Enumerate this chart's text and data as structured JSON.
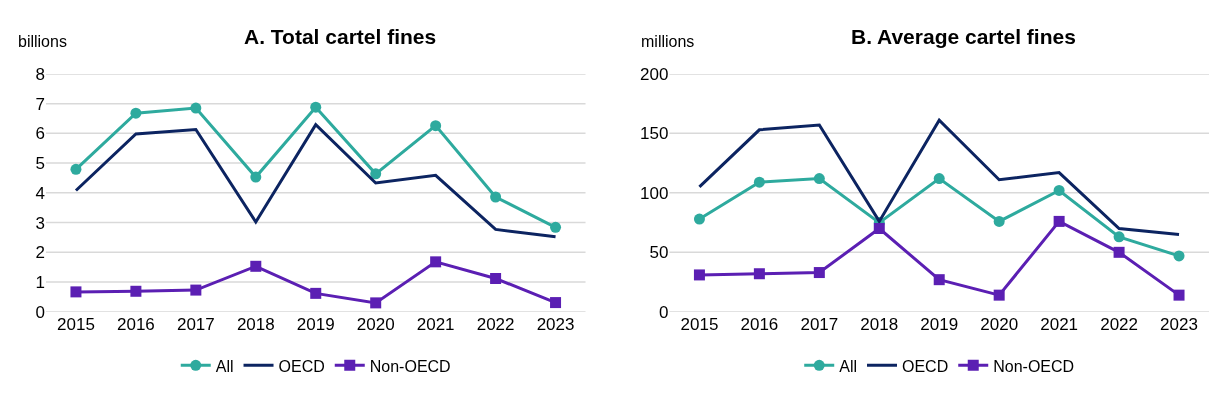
{
  "chart_data": [
    {
      "type": "line",
      "title": "A. Total cartel fines",
      "ylabel": "billions",
      "categories": [
        "2015",
        "2016",
        "2017",
        "2018",
        "2019",
        "2020",
        "2021",
        "2022",
        "2023"
      ],
      "ylim": [
        0,
        8
      ],
      "yticks": [
        0,
        1,
        2,
        3,
        4,
        5,
        6,
        7,
        8
      ],
      "grid": "y",
      "legend": "bottom",
      "series": [
        {
          "name": "All",
          "color": "#2eaa9e",
          "marker": "circle",
          "values": [
            4.79,
            6.68,
            6.85,
            4.53,
            6.88,
            4.64,
            6.26,
            3.86,
            2.84
          ]
        },
        {
          "name": "OECD",
          "color": "#0c2461",
          "marker": "none",
          "values": [
            4.08,
            5.98,
            6.13,
            3.02,
            6.29,
            4.33,
            4.59,
            2.77,
            2.52
          ]
        },
        {
          "name": "Non-OECD",
          "color": "#5b1fb3",
          "marker": "square",
          "values": [
            0.67,
            0.69,
            0.73,
            1.53,
            0.62,
            0.3,
            1.68,
            1.12,
            0.31
          ]
        }
      ]
    },
    {
      "type": "line",
      "title": "B. Average cartel fines",
      "ylabel": "millions",
      "categories": [
        "2015",
        "2016",
        "2017",
        "2018",
        "2019",
        "2020",
        "2021",
        "2022",
        "2023"
      ],
      "ylim": [
        0,
        200
      ],
      "yticks": [
        0,
        50,
        100,
        150,
        200
      ],
      "grid": "y",
      "legend": "bottom",
      "series": [
        {
          "name": "All",
          "color": "#2eaa9e",
          "marker": "circle",
          "values": [
            78,
            109,
            112,
            75,
            112,
            76,
            102,
            63,
            47
          ]
        },
        {
          "name": "OECD",
          "color": "#0c2461",
          "marker": "none",
          "values": [
            105,
            153,
            157,
            76,
            161,
            111,
            117,
            70,
            65
          ]
        },
        {
          "name": "Non-OECD",
          "color": "#5b1fb3",
          "marker": "square",
          "values": [
            31,
            32,
            33,
            70,
            27,
            14,
            76,
            50,
            14
          ]
        }
      ]
    }
  ]
}
